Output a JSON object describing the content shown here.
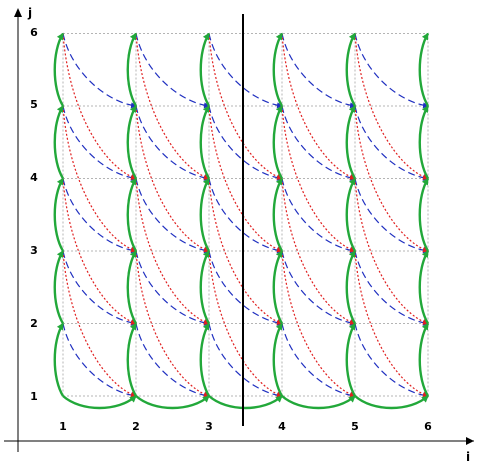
{
  "diagram": {
    "axis_x_label": "i",
    "axis_y_label": "j",
    "x_ticks": [
      "1",
      "2",
      "3",
      "4",
      "5",
      "6"
    ],
    "y_ticks": [
      "1",
      "2",
      "3",
      "4",
      "5",
      "6"
    ],
    "i_values": [
      1,
      2,
      3,
      4,
      5,
      6
    ],
    "j_values": [
      1,
      2,
      3,
      4,
      5,
      6
    ],
    "separator_between_i": [
      3,
      4
    ],
    "colors": {
      "grid": "#b4b4b4",
      "axis": "#000000",
      "green_arc": "#22a83a",
      "red_dotted": "#e02020",
      "blue_dashed": "#2030c0",
      "separator": "#000000"
    }
  }
}
